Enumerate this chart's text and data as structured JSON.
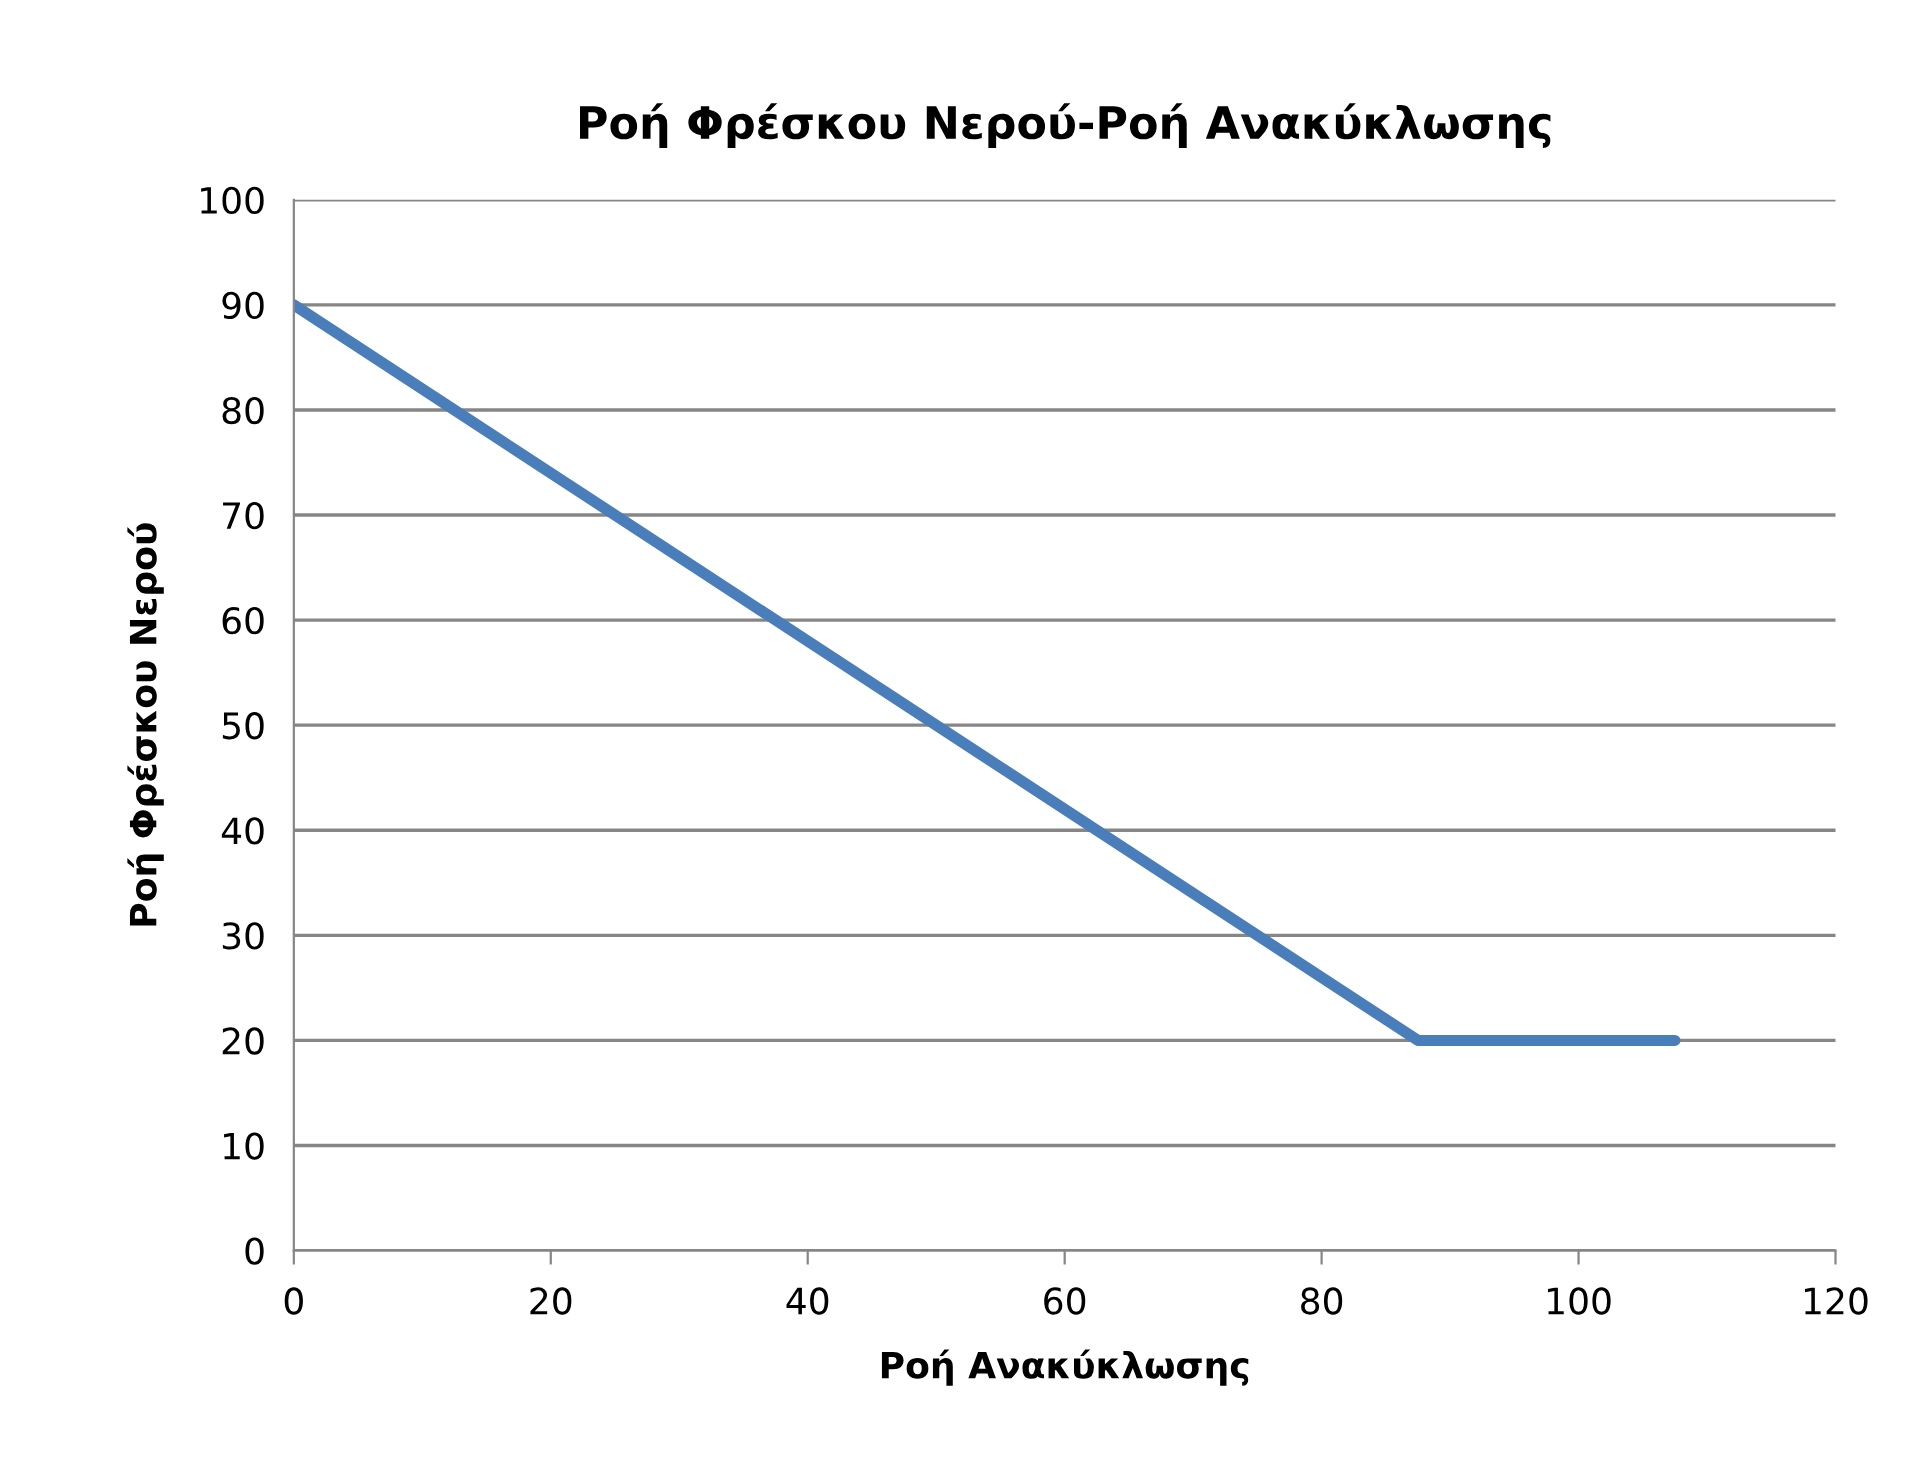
{
  "chart_data": {
    "type": "line",
    "title": "Ροή Φρέσκου Νερού-Ροή Ανακύκλωσης",
    "xlabel": "Ροή Ανακύκλωσης",
    "ylabel": "Ροή Φρέσκου Νερού",
    "x": [
      0,
      87.5,
      107.5
    ],
    "series": [
      {
        "color": "#4a7ebb",
        "values": [
          90,
          20,
          20
        ]
      }
    ],
    "xlim": [
      0,
      120
    ],
    "xticks": [
      0,
      20,
      40,
      60,
      80,
      100,
      120
    ],
    "ylim": [
      0,
      100
    ],
    "yticks": [
      0,
      10,
      20,
      30,
      40,
      50,
      60,
      70,
      80,
      90,
      100
    ],
    "grid": "y",
    "legend": false,
    "marker": "none",
    "line_style": "solid"
  }
}
